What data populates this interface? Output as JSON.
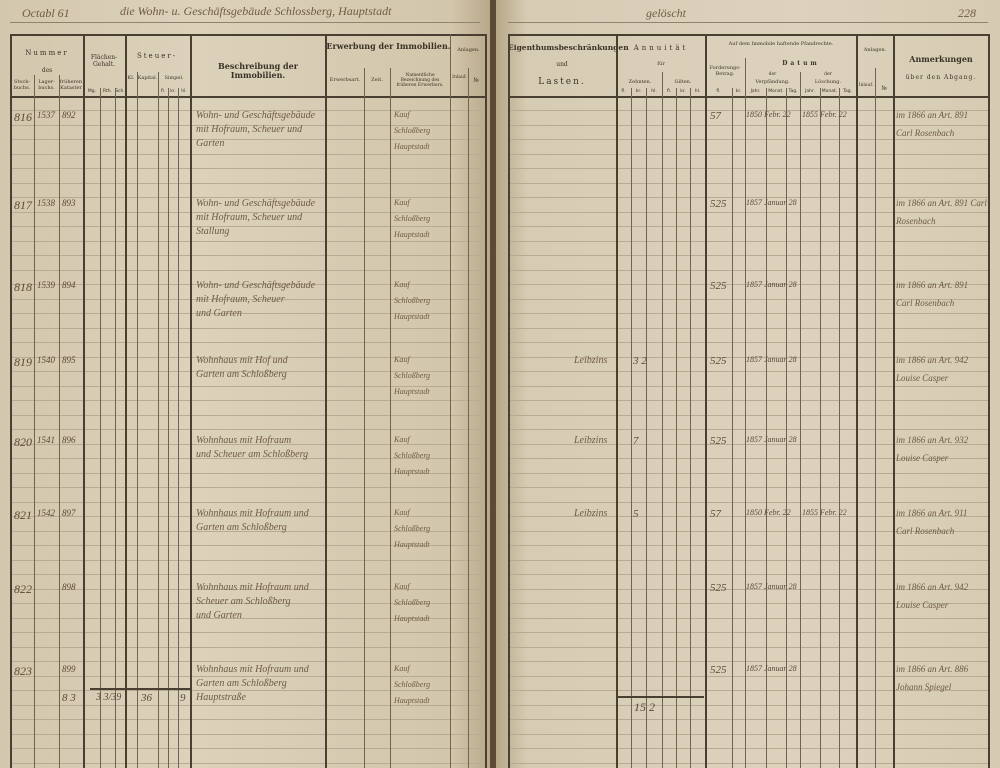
{
  "left_page": {
    "top_title_left": "Octabl 61",
    "top_title": "die Wohn- u. Geschäftsgebäude Schlossberg, Hauptstadt",
    "headers": {
      "nummer": "Nummer",
      "des": "des",
      "stockbuch": "Stock-buchs.",
      "lagerbuch": "Lager-buchs.",
      "frueheren": "früheren Kataster",
      "flaechen": "Flächen-Gehalt.",
      "flaechen_sub": [
        "Mg.",
        "Rth.",
        "Sch."
      ],
      "steuer": "Steuer-",
      "kl": "Kl.",
      "kapital": "Kapital.",
      "simpel": "Simpel.",
      "simpel_sub": [
        "fl.",
        "kr.",
        "hl."
      ],
      "beschreibung": "Beschreibung der Immobilien.",
      "erwerbung": "Erwerbung der Immobilien.",
      "erwerbsart": "Erwerbsart.",
      "zeit": "Zeit.",
      "namentliche": "Namentliche Bezeichnung des früheren Erwerbers.",
      "anlagen": "Anlagen.",
      "inlauf": "Inlauf.",
      "nr": "№"
    },
    "rows": [
      {
        "nr": "816",
        "lager": "1537",
        "frueher": "892",
        "desc": [
          "Wohn- und Geschäftsgebäude",
          "mit Hofraum, Scheuer und",
          "Garten"
        ],
        "erwerber": [
          "Kauf",
          "Schloßberg",
          "Hauptstadt"
        ]
      },
      {
        "nr": "817",
        "lager": "1538",
        "frueher": "893",
        "desc": [
          "Wohn- und Geschäftsgebäude",
          "mit Hofraum, Scheuer und",
          "Stallung"
        ],
        "erwerber": [
          "Kauf",
          "Schloßberg",
          "Hauptstadt"
        ]
      },
      {
        "nr": "818",
        "lager": "1539",
        "frueher": "894",
        "desc": [
          "Wohn- und Geschäftsgebäude",
          "mit Hofraum, Scheuer",
          "und Garten"
        ],
        "erwerber": [
          "Kauf",
          "Schloßberg",
          "Hauptstadt"
        ]
      },
      {
        "nr": "819",
        "lager": "1540",
        "frueher": "895",
        "desc": [
          "Wohnhaus mit Hof und",
          "Garten am Schloßberg"
        ],
        "erwerber": [
          "Kauf",
          "Schloßberg",
          "Hauptstadt"
        ]
      },
      {
        "nr": "820",
        "lager": "1541",
        "frueher": "896",
        "desc": [
          "Wohnhaus mit Hofraum",
          "und Scheuer am Schloßberg"
        ],
        "erwerber": [
          "Kauf",
          "Schloßberg",
          "Hauptstadt"
        ]
      },
      {
        "nr": "821",
        "lager": "1542",
        "frueher": "897",
        "desc": [
          "Wohnhaus mit Hofraum und",
          "Garten am Schloßberg"
        ],
        "erwerber": [
          "Kauf",
          "Schloßberg",
          "Hauptstadt"
        ]
      },
      {
        "nr": "822",
        "lager": "",
        "frueher": "898",
        "desc": [
          "Wohnhaus mit Hofraum und",
          "Scheuer am Schloßberg",
          "und Garten"
        ],
        "erwerber": [
          "Kauf",
          "Schloßberg",
          "Hauptstadt"
        ]
      },
      {
        "nr": "823",
        "lager": "",
        "frueher": "899",
        "desc": [
          "Wohnhaus mit Hofraum und",
          "Garten am Schloßberg",
          "Hauptstraße"
        ],
        "erwerber": [
          "Kauf",
          "Schloßberg",
          "Hauptstadt"
        ]
      }
    ],
    "totals": {
      "mg": "8 3",
      "rth": "3 3/39",
      "kapital": "36",
      "simpel": "9"
    }
  },
  "right_page": {
    "top_title": "gelöscht",
    "page_number": "228",
    "headers": {
      "eigenthum": "Eigenthumsbeschränkungen",
      "und": "und",
      "lasten": "Lasten.",
      "annuitaet": "Annuität",
      "fuer": "für",
      "zehnten": "Zehnten.",
      "gilten": "Gilten.",
      "money_sub": [
        "fl.",
        "kr.",
        "hl."
      ],
      "pfandrechte": "Auf dem Immobile haftende Pfandrechte.",
      "forderung": "Forderungs-Betrag.",
      "forderung_sub": [
        "fl.",
        "kr."
      ],
      "datum": "Datum",
      "der": "der",
      "verpfaendung": "Verpfändung.",
      "loeschung": "Löschung.",
      "date_sub": [
        "Jahr.",
        "Monat.",
        "Tag."
      ],
      "anlagen": "Anlagen.",
      "inlauf": "Inlauf.",
      "nr": "№",
      "anmerkungen": "Anmerkungen",
      "abgang": "über den Abgang."
    },
    "rows": [
      {
        "lasten": "",
        "ann": "",
        "forderung": "57",
        "verpf": "1850 Febr. 22",
        "loesch": "1855 Febr. 22",
        "remark": [
          "im 1866 an Art. 891",
          "Carl Rosenbach"
        ]
      },
      {
        "lasten": "",
        "ann": "",
        "forderung": "525",
        "verpf": "1857 Januar 28",
        "loesch": "",
        "remark": [
          "im 1866 an Art. 891 Carl",
          "Rosenbach"
        ]
      },
      {
        "lasten": "",
        "ann": "",
        "forderung": "525",
        "verpf": "1857 Januar 28",
        "loesch": "",
        "remark": [
          "im 1866 an Art. 891",
          "Carl Rosenbach"
        ]
      },
      {
        "lasten": "Leibzins",
        "ann": "3 2",
        "forderung": "525",
        "verpf": "1857 Januar 28",
        "loesch": "",
        "remark": [
          "im 1866 an Art. 942",
          "Louise Casper"
        ]
      },
      {
        "lasten": "Leibzins",
        "ann": "7",
        "forderung": "525",
        "verpf": "1857 Januar 28",
        "loesch": "",
        "remark": [
          "im 1866 an Art. 932",
          "Louise Casper"
        ]
      },
      {
        "lasten": "Leibzins",
        "ann": "5",
        "forderung": "57",
        "verpf": "1850 Febr. 22",
        "loesch": "1855 Febr. 22",
        "remark": [
          "im 1866 an Art. 911",
          "Carl Rosenbach"
        ]
      },
      {
        "lasten": "",
        "ann": "",
        "forderung": "525",
        "verpf": "1857 Januar 28",
        "loesch": "",
        "remark": [
          "im 1866 an Art. 942",
          "Louise Casper"
        ]
      },
      {
        "lasten": "",
        "ann": "",
        "forderung": "525",
        "verpf": "1857 Januar 28",
        "loesch": "",
        "remark": [
          "im 1866 an Art. 886",
          "Johann Spiegel"
        ]
      }
    ],
    "totals": {
      "zehnten": "15 2"
    }
  }
}
